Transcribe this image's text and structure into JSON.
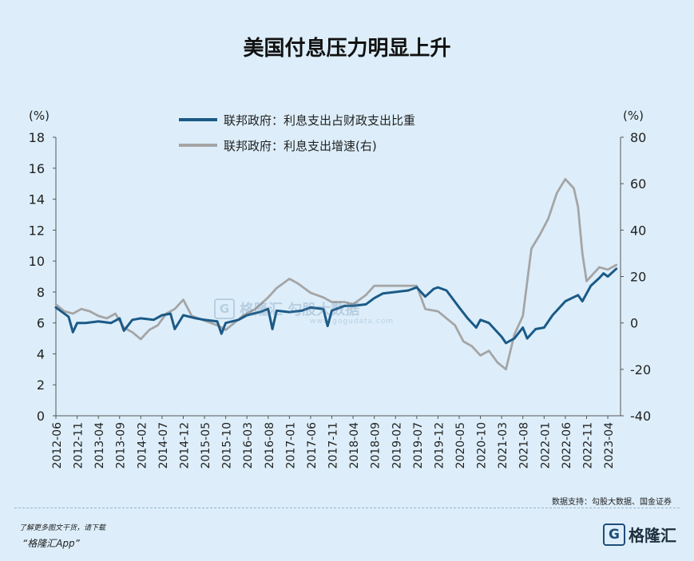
{
  "title": "美国付息压力明显上升",
  "source": "数据支持：勾股大数据、国金证券",
  "promo_line1": "了解更多图文干货，请下载",
  "promo_line2": "“格隆汇App”",
  "brand_mark": "G",
  "brand_text": "格隆汇",
  "watermark": {
    "mark": "G",
    "text": "格隆汇  勾股大数据",
    "sub": "www.gogudata.com"
  },
  "colors": {
    "series1": "#1b5a87",
    "series2": "#a5a5a5",
    "background": "#ddeefa"
  },
  "chart_data": {
    "type": "line",
    "title": "美国付息压力明显上升",
    "left_axis": {
      "unit_label": "(%)",
      "ylim": [
        0,
        18
      ],
      "ticks": [
        0,
        2,
        4,
        6,
        8,
        10,
        12,
        14,
        16,
        18
      ]
    },
    "right_axis": {
      "unit_label": "(%)",
      "ylim": [
        -40,
        80
      ],
      "ticks": [
        -40,
        -20,
        0,
        20,
        40,
        60,
        80
      ]
    },
    "x_ticks": [
      "2012-06",
      "2012-11",
      "2013-04",
      "2013-09",
      "2014-02",
      "2014-07",
      "2014-12",
      "2015-05",
      "2015-10",
      "2016-03",
      "2016-08",
      "2017-01",
      "2017-06",
      "2017-11",
      "2018-04",
      "2018-09",
      "2019-02",
      "2019-07",
      "2019-12",
      "2020-05",
      "2020-10",
      "2021-03",
      "2021-08",
      "2022-01",
      "2022-06",
      "2022-11",
      "2023-04"
    ],
    "legend_position": "top-center",
    "series": [
      {
        "name": "联邦政府：利息支出占财政支出比重",
        "axis": "left",
        "points": [
          [
            "2012-06",
            7.0
          ],
          [
            "2012-09",
            6.4
          ],
          [
            "2012-10",
            5.4
          ],
          [
            "2012-11",
            6.0
          ],
          [
            "2013-01",
            6.0
          ],
          [
            "2013-04",
            6.1
          ],
          [
            "2013-07",
            6.0
          ],
          [
            "2013-09",
            6.3
          ],
          [
            "2013-10",
            5.5
          ],
          [
            "2013-12",
            6.2
          ],
          [
            "2014-02",
            6.3
          ],
          [
            "2014-05",
            6.2
          ],
          [
            "2014-07",
            6.5
          ],
          [
            "2014-09",
            6.6
          ],
          [
            "2014-10",
            5.6
          ],
          [
            "2014-12",
            6.5
          ],
          [
            "2015-03",
            6.3
          ],
          [
            "2015-05",
            6.2
          ],
          [
            "2015-08",
            6.1
          ],
          [
            "2015-09",
            5.3
          ],
          [
            "2015-10",
            6.0
          ],
          [
            "2016-01",
            6.2
          ],
          [
            "2016-03",
            6.5
          ],
          [
            "2016-06",
            6.7
          ],
          [
            "2016-08",
            6.9
          ],
          [
            "2016-09",
            5.6
          ],
          [
            "2016-10",
            6.8
          ],
          [
            "2017-01",
            6.7
          ],
          [
            "2017-04",
            6.8
          ],
          [
            "2017-06",
            7.0
          ],
          [
            "2017-09",
            6.9
          ],
          [
            "2017-10",
            5.8
          ],
          [
            "2017-11",
            6.8
          ],
          [
            "2018-02",
            7.1
          ],
          [
            "2018-04",
            7.1
          ],
          [
            "2018-07",
            7.2
          ],
          [
            "2018-09",
            7.6
          ],
          [
            "2018-11",
            7.9
          ],
          [
            "2019-02",
            8.0
          ],
          [
            "2019-05",
            8.1
          ],
          [
            "2019-07",
            8.3
          ],
          [
            "2019-09",
            7.7
          ],
          [
            "2019-11",
            8.2
          ],
          [
            "2019-12",
            8.3
          ],
          [
            "2020-02",
            8.1
          ],
          [
            "2020-05",
            7.0
          ],
          [
            "2020-07",
            6.3
          ],
          [
            "2020-09",
            5.7
          ],
          [
            "2020-10",
            6.2
          ],
          [
            "2020-12",
            6.0
          ],
          [
            "2021-02",
            5.4
          ],
          [
            "2021-03",
            5.1
          ],
          [
            "2021-04",
            4.7
          ],
          [
            "2021-06",
            5.0
          ],
          [
            "2021-08",
            5.7
          ],
          [
            "2021-09",
            5.0
          ],
          [
            "2021-11",
            5.6
          ],
          [
            "2022-01",
            5.7
          ],
          [
            "2022-03",
            6.5
          ],
          [
            "2022-06",
            7.4
          ],
          [
            "2022-09",
            7.8
          ],
          [
            "2022-10",
            7.4
          ],
          [
            "2022-12",
            8.4
          ],
          [
            "2023-02",
            8.9
          ],
          [
            "2023-03",
            9.2
          ],
          [
            "2023-04",
            9.0
          ],
          [
            "2023-06",
            9.5
          ]
        ]
      },
      {
        "name": "联邦政府：利息支出增速(右)",
        "axis": "right",
        "points": [
          [
            "2012-06",
            8
          ],
          [
            "2012-08",
            5
          ],
          [
            "2012-10",
            4
          ],
          [
            "2012-12",
            6
          ],
          [
            "2013-02",
            5
          ],
          [
            "2013-04",
            3
          ],
          [
            "2013-06",
            2
          ],
          [
            "2013-08",
            4
          ],
          [
            "2013-10",
            -2
          ],
          [
            "2013-12",
            -4
          ],
          [
            "2014-02",
            -7
          ],
          [
            "2014-04",
            -3
          ],
          [
            "2014-06",
            -1
          ],
          [
            "2014-08",
            4
          ],
          [
            "2014-10",
            6
          ],
          [
            "2014-12",
            10
          ],
          [
            "2015-02",
            3
          ],
          [
            "2015-05",
            1
          ],
          [
            "2015-08",
            -1
          ],
          [
            "2015-10",
            -3
          ],
          [
            "2015-12",
            0
          ],
          [
            "2016-02",
            3
          ],
          [
            "2016-05",
            6
          ],
          [
            "2016-08",
            11
          ],
          [
            "2016-10",
            15
          ],
          [
            "2017-01",
            19
          ],
          [
            "2017-03",
            17
          ],
          [
            "2017-06",
            13
          ],
          [
            "2017-09",
            11
          ],
          [
            "2017-11",
            9
          ],
          [
            "2018-02",
            9
          ],
          [
            "2018-04",
            8
          ],
          [
            "2018-07",
            12
          ],
          [
            "2018-09",
            16
          ],
          [
            "2019-01",
            16
          ],
          [
            "2019-04",
            16
          ],
          [
            "2019-07",
            16
          ],
          [
            "2019-09",
            6
          ],
          [
            "2019-12",
            5
          ],
          [
            "2020-02",
            2
          ],
          [
            "2020-04",
            -1
          ],
          [
            "2020-06",
            -8
          ],
          [
            "2020-08",
            -10
          ],
          [
            "2020-10",
            -14
          ],
          [
            "2020-12",
            -12
          ],
          [
            "2021-02",
            -17
          ],
          [
            "2021-04",
            -20
          ],
          [
            "2021-06",
            -5
          ],
          [
            "2021-08",
            3
          ],
          [
            "2021-10",
            32
          ],
          [
            "2021-12",
            38
          ],
          [
            "2022-02",
            45
          ],
          [
            "2022-04",
            56
          ],
          [
            "2022-06",
            62
          ],
          [
            "2022-08",
            58
          ],
          [
            "2022-09",
            50
          ],
          [
            "2022-10",
            30
          ],
          [
            "2022-11",
            18
          ],
          [
            "2022-12",
            20
          ],
          [
            "2023-02",
            24
          ],
          [
            "2023-04",
            23
          ],
          [
            "2023-06",
            25
          ]
        ]
      }
    ]
  }
}
